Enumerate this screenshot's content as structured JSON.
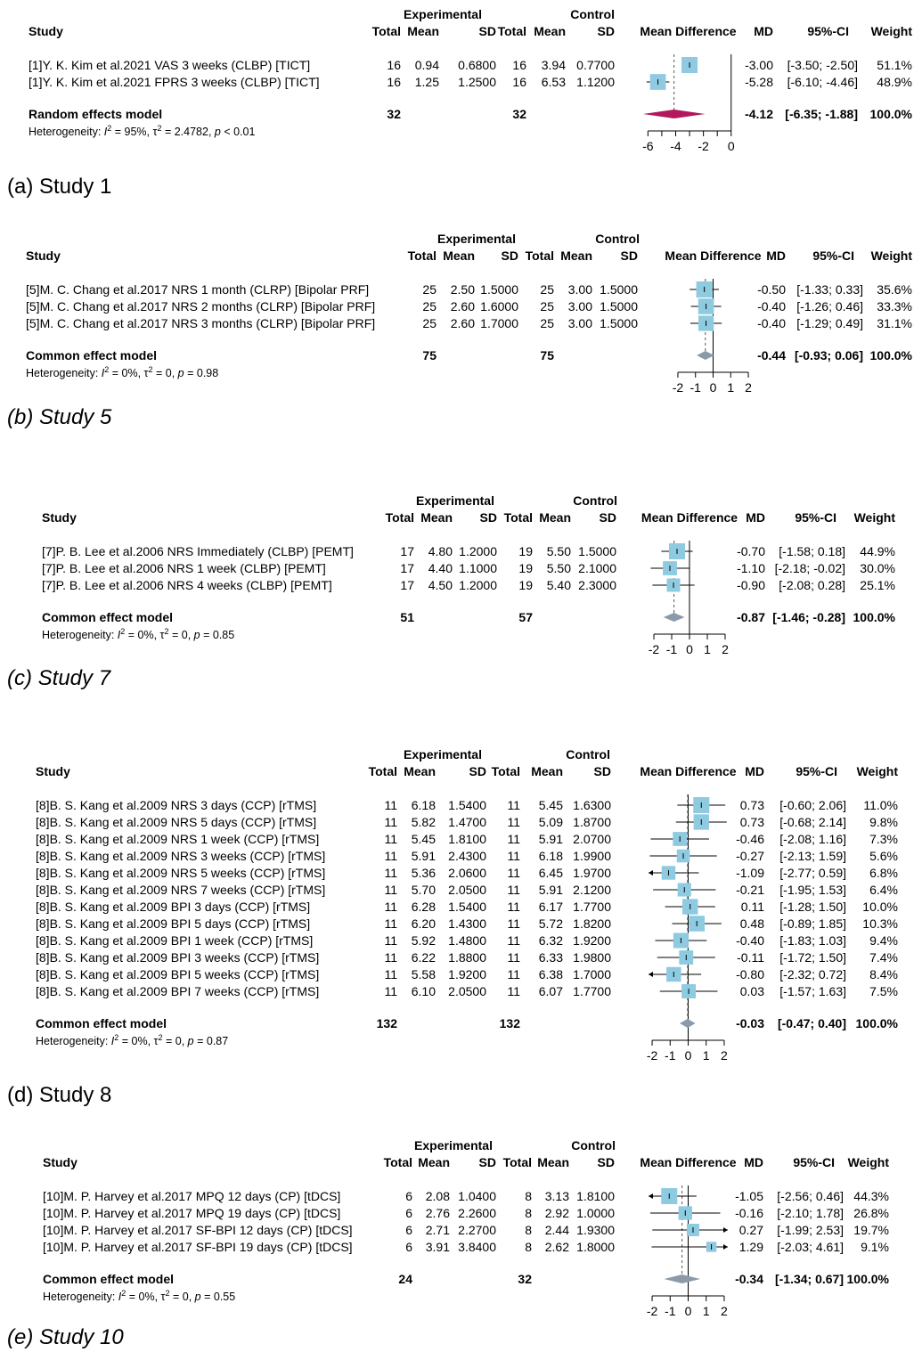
{
  "labels": {
    "experimental": "Experimental",
    "control": "Control",
    "study": "Study",
    "total": "Total",
    "mean": "Mean",
    "sd": "SD",
    "md_header": "Mean Difference",
    "md_short": "MD",
    "ci_header": "95%-CI",
    "weight": "Weight"
  },
  "colors": {
    "study_box": "#8ecbe0",
    "random_diamond": "#b2185b",
    "common_diamond": "#8a9aa8",
    "ci_line": "#000000"
  },
  "chart_data": [
    {
      "type": "forest",
      "caption": "(a) Study 1",
      "caption_italic": false,
      "axis_ticks": [
        -6,
        -4,
        -2,
        0
      ],
      "xlim": [
        -6.6,
        0.4
      ],
      "studies": [
        {
          "label": "[1]Y. K. Kim et al.2021 VAS 3 weeks (CLBP) [TICT]",
          "e_total": "16",
          "e_mean": "0.94",
          "e_sd": "0.6800",
          "c_total": "16",
          "c_mean": "3.94",
          "c_sd": "0.7700",
          "md": -3.0,
          "lo": -3.5,
          "hi": -2.5,
          "md_text": "-3.00",
          "ci_text": "[-3.50; -2.50]",
          "weight": "51.1%",
          "weight_value": 51.1
        },
        {
          "label": "[1]Y. K. Kim et al.2021 FPRS 3 weeks (CLBP) [TICT]",
          "e_total": "16",
          "e_mean": "1.25",
          "e_sd": "1.2500",
          "c_total": "16",
          "c_mean": "6.53",
          "c_sd": "1.1200",
          "md": -5.28,
          "lo": -6.1,
          "hi": -4.46,
          "md_text": "-5.28",
          "ci_text": "[-6.10; -4.46]",
          "weight": "48.9%",
          "weight_value": 48.9
        }
      ],
      "pooled": {
        "label": "Random effects model",
        "e_total": "32",
        "c_total": "32",
        "md": -4.12,
        "lo": -6.35,
        "hi": -1.88,
        "md_text": "-4.12",
        "ci_text": "[-6.35; -1.88]",
        "weight": "100.0%",
        "model": "random"
      },
      "heterogeneity": {
        "prefix": "Heterogeneity: ",
        "i2": "= 95%, ",
        "tau2": "= 2.4782, ",
        "p": "< 0.01"
      }
    },
    {
      "type": "forest",
      "caption": "(b) Study 5",
      "caption_italic": true,
      "axis_ticks": [
        -2,
        -1,
        0,
        1,
        2
      ],
      "xlim": [
        -2.2,
        2.2
      ],
      "studies": [
        {
          "label": "[5]M. C. Chang et al.2017 NRS 1 month (CLRP) [Bipolar PRF]",
          "e_total": "25",
          "e_mean": "2.50",
          "e_sd": "1.5000",
          "c_total": "25",
          "c_mean": "3.00",
          "c_sd": "1.5000",
          "md": -0.5,
          "lo": -1.33,
          "hi": 0.33,
          "md_text": "-0.50",
          "ci_text": "[-1.33; 0.33]",
          "weight": "35.6%",
          "weight_value": 35.6
        },
        {
          "label": "[5]M. C. Chang et al.2017 NRS 2 months (CLRP) [Bipolar PRF]",
          "e_total": "25",
          "e_mean": "2.60",
          "e_sd": "1.6000",
          "c_total": "25",
          "c_mean": "3.00",
          "c_sd": "1.5000",
          "md": -0.4,
          "lo": -1.26,
          "hi": 0.46,
          "md_text": "-0.40",
          "ci_text": "[-1.26; 0.46]",
          "weight": "33.3%",
          "weight_value": 33.3
        },
        {
          "label": "[5]M. C. Chang et al.2017 NRS 3 months (CLRP) [Bipolar PRF]",
          "e_total": "25",
          "e_mean": "2.60",
          "e_sd": "1.7000",
          "c_total": "25",
          "c_mean": "3.00",
          "c_sd": "1.5000",
          "md": -0.4,
          "lo": -1.29,
          "hi": 0.49,
          "md_text": "-0.40",
          "ci_text": "[-1.29; 0.49]",
          "weight": "31.1%",
          "weight_value": 31.1
        }
      ],
      "pooled": {
        "label": "Common effect model",
        "e_total": "75",
        "c_total": "75",
        "md": -0.44,
        "lo": -0.93,
        "hi": 0.06,
        "md_text": "-0.44",
        "ci_text": "[-0.93; 0.06]",
        "weight": "100.0%",
        "model": "common"
      },
      "heterogeneity": {
        "prefix": "Heterogeneity: ",
        "i2": "= 0%, ",
        "tau2": "= 0, ",
        "p": "= 0.98"
      }
    },
    {
      "type": "forest",
      "caption": "(c) Study 7",
      "caption_italic": true,
      "axis_ticks": [
        -2,
        -1,
        0,
        1,
        2
      ],
      "xlim": [
        -2.2,
        2.2
      ],
      "studies": [
        {
          "label": "[7]P. B. Lee et al.2006 NRS Immediately (CLBP) [PEMT]",
          "e_total": "17",
          "e_mean": "4.80",
          "e_sd": "1.2000",
          "c_total": "19",
          "c_mean": "5.50",
          "c_sd": "1.5000",
          "md": -0.7,
          "lo": -1.58,
          "hi": 0.18,
          "md_text": "-0.70",
          "ci_text": "[-1.58; 0.18]",
          "weight": "44.9%",
          "weight_value": 44.9
        },
        {
          "label": "[7]P. B. Lee et al.2006 NRS 1 week (CLBP) [PEMT]",
          "e_total": "17",
          "e_mean": "4.40",
          "e_sd": "1.1000",
          "c_total": "19",
          "c_mean": "5.50",
          "c_sd": "2.1000",
          "md": -1.1,
          "lo": -2.18,
          "hi": -0.02,
          "md_text": "-1.10",
          "ci_text": "[-2.18; -0.02]",
          "weight": "30.0%",
          "weight_value": 30.0
        },
        {
          "label": "[7]P. B. Lee et al.2006 NRS 4 weeks (CLBP) [PEMT]",
          "e_total": "17",
          "e_mean": "4.50",
          "e_sd": "1.2000",
          "c_total": "19",
          "c_mean": "5.40",
          "c_sd": "2.3000",
          "md": -0.9,
          "lo": -2.08,
          "hi": 0.28,
          "md_text": "-0.90",
          "ci_text": "[-2.08; 0.28]",
          "weight": "25.1%",
          "weight_value": 25.1
        }
      ],
      "pooled": {
        "label": "Common effect model",
        "e_total": "51",
        "c_total": "57",
        "md": -0.87,
        "lo": -1.46,
        "hi": -0.28,
        "md_text": "-0.87",
        "ci_text": "[-1.46; -0.28]",
        "weight": "100.0%",
        "model": "common"
      },
      "heterogeneity": {
        "prefix": "Heterogeneity: ",
        "i2": "= 0%, ",
        "tau2": "= 0, ",
        "p": "= 0.85"
      }
    },
    {
      "type": "forest",
      "caption": "(d) Study 8",
      "caption_italic": false,
      "axis_ticks": [
        -2,
        -1,
        0,
        1,
        2
      ],
      "xlim": [
        -2.2,
        2.2
      ],
      "studies": [
        {
          "label": "[8]B. S. Kang et al.2009 NRS 3 days (CCP) [rTMS]",
          "e_total": "11",
          "e_mean": "6.18",
          "e_sd": "1.5400",
          "c_total": "11",
          "c_mean": "5.45",
          "c_sd": "1.6300",
          "md": 0.73,
          "lo": -0.6,
          "hi": 2.06,
          "md_text": "0.73",
          "ci_text": "[-0.60; 2.06]",
          "weight": "11.0%",
          "weight_value": 11.0
        },
        {
          "label": "[8]B. S. Kang et al.2009 NRS 5 days (CCP) [rTMS]",
          "e_total": "11",
          "e_mean": "5.82",
          "e_sd": "1.4700",
          "c_total": "11",
          "c_mean": "5.09",
          "c_sd": "1.8700",
          "md": 0.73,
          "lo": -0.68,
          "hi": 2.14,
          "md_text": "0.73",
          "ci_text": "[-0.68; 2.14]",
          "weight": "9.8%",
          "weight_value": 9.8
        },
        {
          "label": "[8]B. S. Kang et al.2009 NRS 1 week (CCP) [rTMS]",
          "e_total": "11",
          "e_mean": "5.45",
          "e_sd": "1.8100",
          "c_total": "11",
          "c_mean": "5.91",
          "c_sd": "2.0700",
          "md": -0.46,
          "lo": -2.08,
          "hi": 1.16,
          "md_text": "-0.46",
          "ci_text": "[-2.08; 1.16]",
          "weight": "7.3%",
          "weight_value": 7.3
        },
        {
          "label": "[8]B. S. Kang et al.2009 NRS 3 weeks (CCP) [rTMS]",
          "e_total": "11",
          "e_mean": "5.91",
          "e_sd": "2.4300",
          "c_total": "11",
          "c_mean": "6.18",
          "c_sd": "1.9900",
          "md": -0.27,
          "lo": -2.13,
          "hi": 1.59,
          "md_text": "-0.27",
          "ci_text": "[-2.13; 1.59]",
          "weight": "5.6%",
          "weight_value": 5.6
        },
        {
          "label": "[8]B. S. Kang et al.2009 NRS 5 weeks (CCP) [rTMS]",
          "e_total": "11",
          "e_mean": "5.36",
          "e_sd": "2.0600",
          "c_total": "11",
          "c_mean": "6.45",
          "c_sd": "1.9700",
          "md": -1.09,
          "lo": -2.77,
          "hi": 0.59,
          "md_text": "-1.09",
          "ci_text": "[-2.77; 0.59]",
          "weight": "6.8%",
          "weight_value": 6.8
        },
        {
          "label": "[8]B. S. Kang et al.2009 NRS 7 weeks (CCP) [rTMS]",
          "e_total": "11",
          "e_mean": "5.70",
          "e_sd": "2.0500",
          "c_total": "11",
          "c_mean": "5.91",
          "c_sd": "2.1200",
          "md": -0.21,
          "lo": -1.95,
          "hi": 1.53,
          "md_text": "-0.21",
          "ci_text": "[-1.95; 1.53]",
          "weight": "6.4%",
          "weight_value": 6.4
        },
        {
          "label": "[8]B. S. Kang et al.2009 BPI 3 days (CCP) [rTMS]",
          "e_total": "11",
          "e_mean": "6.28",
          "e_sd": "1.5400",
          "c_total": "11",
          "c_mean": "6.17",
          "c_sd": "1.7700",
          "md": 0.11,
          "lo": -1.28,
          "hi": 1.5,
          "md_text": "0.11",
          "ci_text": "[-1.28; 1.50]",
          "weight": "10.0%",
          "weight_value": 10.0
        },
        {
          "label": "[8]B. S. Kang et al.2009 BPI 5 days (CCP) [rTMS]",
          "e_total": "11",
          "e_mean": "6.20",
          "e_sd": "1.4300",
          "c_total": "11",
          "c_mean": "5.72",
          "c_sd": "1.8200",
          "md": 0.48,
          "lo": -0.89,
          "hi": 1.85,
          "md_text": "0.48",
          "ci_text": "[-0.89; 1.85]",
          "weight": "10.3%",
          "weight_value": 10.3
        },
        {
          "label": "[8]B. S. Kang et al.2009 BPI 1 week (CCP) [rTMS]",
          "e_total": "11",
          "e_mean": "5.92",
          "e_sd": "1.4800",
          "c_total": "11",
          "c_mean": "6.32",
          "c_sd": "1.9200",
          "md": -0.4,
          "lo": -1.83,
          "hi": 1.03,
          "md_text": "-0.40",
          "ci_text": "[-1.83; 1.03]",
          "weight": "9.4%",
          "weight_value": 9.4
        },
        {
          "label": "[8]B. S. Kang et al.2009 BPI 3 weeks (CCP) [rTMS]",
          "e_total": "11",
          "e_mean": "6.22",
          "e_sd": "1.8800",
          "c_total": "11",
          "c_mean": "6.33",
          "c_sd": "1.9800",
          "md": -0.11,
          "lo": -1.72,
          "hi": 1.5,
          "md_text": "-0.11",
          "ci_text": "[-1.72; 1.50]",
          "weight": "7.4%",
          "weight_value": 7.4
        },
        {
          "label": "[8]B. S. Kang et al.2009 BPI 5 weeks (CCP) [rTMS]",
          "e_total": "11",
          "e_mean": "5.58",
          "e_sd": "1.9200",
          "c_total": "11",
          "c_mean": "6.38",
          "c_sd": "1.7000",
          "md": -0.8,
          "lo": -2.32,
          "hi": 0.72,
          "md_text": "-0.80",
          "ci_text": "[-2.32; 0.72]",
          "weight": "8.4%",
          "weight_value": 8.4
        },
        {
          "label": "[8]B. S. Kang et al.2009 BPI 7 weeks (CCP) [rTMS]",
          "e_total": "11",
          "e_mean": "6.10",
          "e_sd": "2.0500",
          "c_total": "11",
          "c_mean": "6.07",
          "c_sd": "1.7700",
          "md": 0.03,
          "lo": -1.57,
          "hi": 1.63,
          "md_text": "0.03",
          "ci_text": "[-1.57; 1.63]",
          "weight": "7.5%",
          "weight_value": 7.5
        }
      ],
      "pooled": {
        "label": "Common effect model",
        "e_total": "132",
        "c_total": "132",
        "md": -0.03,
        "lo": -0.47,
        "hi": 0.4,
        "md_text": "-0.03",
        "ci_text": "[-0.47; 0.40]",
        "weight": "100.0%",
        "model": "common"
      },
      "heterogeneity": {
        "prefix": "Heterogeneity: ",
        "i2": "= 0%, ",
        "tau2": "= 0, ",
        "p": "= 0.87"
      }
    },
    {
      "type": "forest",
      "caption": "(e) Study 10",
      "caption_italic": true,
      "axis_ticks": [
        -2,
        -1,
        0,
        1,
        2
      ],
      "xlim": [
        -2.2,
        2.2
      ],
      "studies": [
        {
          "label": "[10]M. P. Harvey et al.2017 MPQ 12 days (CP) [tDCS]",
          "e_total": "6",
          "e_mean": "2.08",
          "e_sd": "1.0400",
          "c_total": "8",
          "c_mean": "3.13",
          "c_sd": "1.8100",
          "md": -1.05,
          "lo": -2.56,
          "hi": 0.46,
          "md_text": "-1.05",
          "ci_text": "[-2.56; 0.46]",
          "weight": "44.3%",
          "weight_value": 44.3
        },
        {
          "label": "[10]M. P. Harvey et al.2017 MPQ 19 days (CP) [tDCS]",
          "e_total": "6",
          "e_mean": "2.76",
          "e_sd": "2.2600",
          "c_total": "8",
          "c_mean": "2.92",
          "c_sd": "1.0000",
          "md": -0.16,
          "lo": -2.1,
          "hi": 1.78,
          "md_text": "-0.16",
          "ci_text": "[-2.10; 1.78]",
          "weight": "26.8%",
          "weight_value": 26.8
        },
        {
          "label": "[10]M. P. Harvey et al.2017 SF-BPI 12 days (CP) [tDCS]",
          "e_total": "6",
          "e_mean": "2.71",
          "e_sd": "2.2700",
          "c_total": "8",
          "c_mean": "2.44",
          "c_sd": "1.9300",
          "md": 0.27,
          "lo": -1.99,
          "hi": 2.53,
          "md_text": "0.27",
          "ci_text": "[-1.99; 2.53]",
          "weight": "19.7%",
          "weight_value": 19.7
        },
        {
          "label": "[10]M. P. Harvey et al.2017 SF-BPI 19 days (CP) [tDCS]",
          "e_total": "6",
          "e_mean": "3.91",
          "e_sd": "3.8400",
          "c_total": "8",
          "c_mean": "2.62",
          "c_sd": "1.8000",
          "md": 1.29,
          "lo": -2.03,
          "hi": 4.61,
          "md_text": "1.29",
          "ci_text": "[-2.03; 4.61]",
          "weight": "9.1%",
          "weight_value": 9.1
        }
      ],
      "pooled": {
        "label": "Common effect model",
        "e_total": "24",
        "c_total": "32",
        "md": -0.34,
        "lo": -1.34,
        "hi": 0.67,
        "md_text": "-0.34",
        "ci_text": "[-1.34; 0.67]",
        "weight": "100.0%",
        "model": "common"
      },
      "heterogeneity": {
        "prefix": "Heterogeneity: ",
        "i2": "= 0%, ",
        "tau2": "= 0, ",
        "p": "= 0.55"
      }
    }
  ]
}
